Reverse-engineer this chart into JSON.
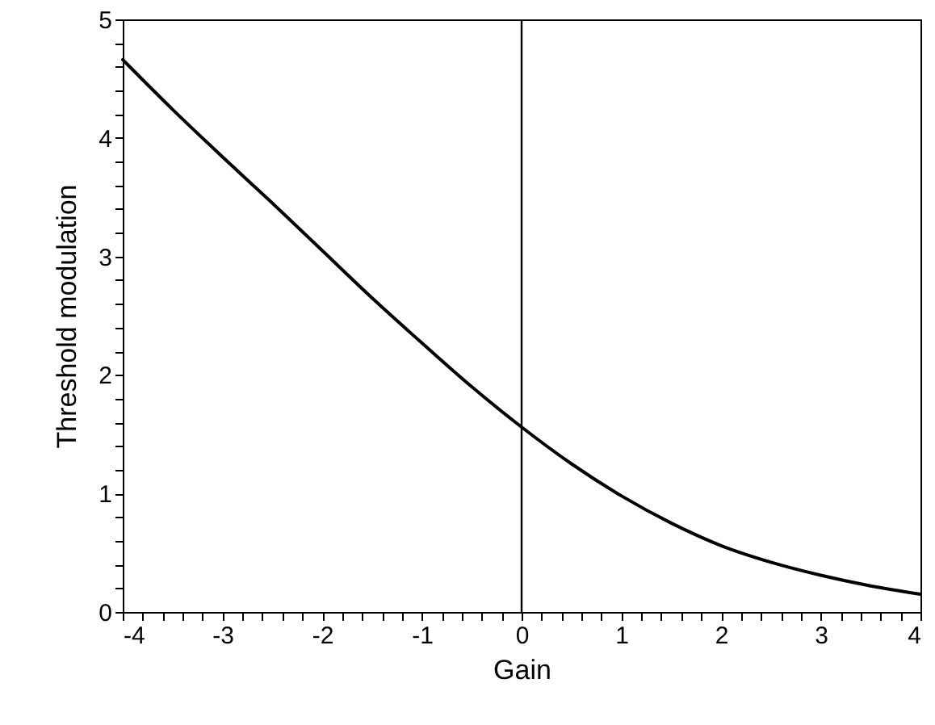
{
  "chart_data": {
    "type": "line",
    "xlabel": "Gain",
    "ylabel": "Threshold modulation",
    "x": [
      -4,
      -3.5,
      -3,
      -2.5,
      -2,
      -1.5,
      -1,
      -0.5,
      0,
      0.5,
      1,
      1.5,
      2,
      2.5,
      3,
      3.5,
      4
    ],
    "series": [
      {
        "color": "#000000",
        "values": [
          4.66,
          4.24,
          3.84,
          3.45,
          3.05,
          2.65,
          2.27,
          1.9,
          1.56,
          1.25,
          0.98,
          0.75,
          0.56,
          0.42,
          0.31,
          0.22,
          0.15
        ]
      }
    ],
    "xlim": [
      -4,
      4
    ],
    "ylim": [
      0,
      5
    ],
    "xticks": [
      -4,
      {
        "value": -3.8,
        "label": null
      },
      {
        "value": -3.6,
        "label": null
      },
      {
        "value": -3.4,
        "label": null
      },
      {
        "value": -3.2,
        "label": null
      },
      -3,
      {
        "value": -2.8,
        "label": null
      },
      {
        "value": -2.6,
        "label": null
      },
      {
        "value": -2.4,
        "label": null
      },
      {
        "value": -2.2,
        "label": null
      },
      -2,
      {
        "value": -1.8,
        "label": null
      },
      {
        "value": -1.6,
        "label": null
      },
      {
        "value": -1.4,
        "label": null
      },
      {
        "value": -1.2,
        "label": null
      },
      -1,
      {
        "value": -0.8,
        "label": null
      },
      {
        "value": -0.6,
        "label": null
      },
      {
        "value": -0.4,
        "label": null
      },
      {
        "value": -0.2,
        "label": null
      },
      0,
      {
        "value": 0.2,
        "label": null
      },
      {
        "value": 0.4,
        "label": null
      },
      {
        "value": 0.6,
        "label": null
      },
      {
        "value": 0.8,
        "label": null
      },
      1,
      {
        "value": 1.2,
        "label": null
      },
      {
        "value": 1.4,
        "label": null
      },
      {
        "value": 1.6,
        "label": null
      },
      {
        "value": 1.8,
        "label": null
      },
      2,
      {
        "value": 2.2,
        "label": null
      },
      {
        "value": 2.4,
        "label": null
      },
      {
        "value": 2.6,
        "label": null
      },
      {
        "value": 2.8,
        "label": null
      },
      3,
      {
        "value": 3.2,
        "label": null
      },
      {
        "value": 3.4,
        "label": null
      },
      {
        "value": 3.6,
        "label": null
      },
      {
        "value": 3.8,
        "label": null
      },
      4
    ],
    "yticks": [
      0,
      {
        "value": 0.2,
        "label": null
      },
      {
        "value": 0.4,
        "label": null
      },
      {
        "value": 0.6,
        "label": null
      },
      {
        "value": 0.8,
        "label": null
      },
      1,
      {
        "value": 1.2,
        "label": null
      },
      {
        "value": 1.4,
        "label": null
      },
      {
        "value": 1.6,
        "label": null
      },
      {
        "value": 1.8,
        "label": null
      },
      2,
      {
        "value": 2.2,
        "label": null
      },
      {
        "value": 2.4,
        "label": null
      },
      {
        "value": 2.6,
        "label": null
      },
      {
        "value": 2.8,
        "label": null
      },
      3,
      {
        "value": 3.2,
        "label": null
      },
      {
        "value": 3.4,
        "label": null
      },
      {
        "value": 3.6,
        "label": null
      },
      {
        "value": 3.8,
        "label": null
      },
      4,
      {
        "value": 4.2,
        "label": null
      },
      {
        "value": 4.4,
        "label": null
      },
      {
        "value": 4.6,
        "label": null
      },
      {
        "value": 4.8,
        "label": null
      },
      5
    ],
    "ref_lines": [
      {
        "axis": "x",
        "value": 0,
        "color": "#000000"
      }
    ],
    "grid": false,
    "line_style": "solid"
  }
}
